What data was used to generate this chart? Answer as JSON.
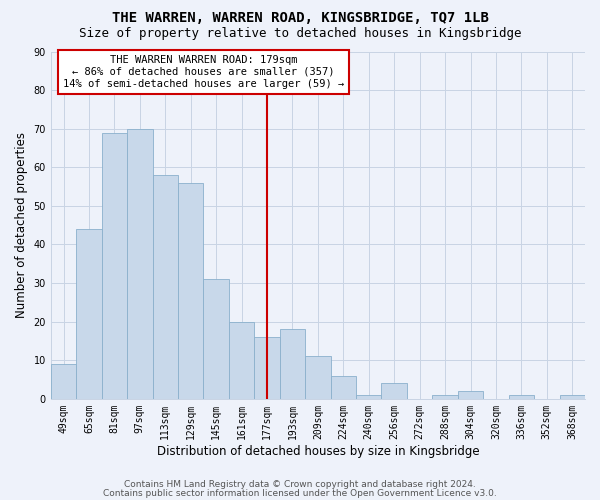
{
  "title": "THE WARREN, WARREN ROAD, KINGSBRIDGE, TQ7 1LB",
  "subtitle": "Size of property relative to detached houses in Kingsbridge",
  "xlabel": "Distribution of detached houses by size in Kingsbridge",
  "ylabel": "Number of detached properties",
  "categories": [
    "49sqm",
    "65sqm",
    "81sqm",
    "97sqm",
    "113sqm",
    "129sqm",
    "145sqm",
    "161sqm",
    "177sqm",
    "193sqm",
    "209sqm",
    "224sqm",
    "240sqm",
    "256sqm",
    "272sqm",
    "288sqm",
    "304sqm",
    "320sqm",
    "336sqm",
    "352sqm",
    "368sqm"
  ],
  "values": [
    9,
    44,
    69,
    70,
    58,
    56,
    31,
    20,
    16,
    18,
    11,
    6,
    1,
    4,
    0,
    1,
    2,
    0,
    1,
    0,
    1
  ],
  "bar_color": "#c8d8ea",
  "bar_edge_color": "#8ab0cc",
  "bar_width": 1.0,
  "marker_index": 8,
  "marker_color": "#cc0000",
  "annotation_title": "THE WARREN WARREN ROAD: 179sqm",
  "annotation_line1": "← 86% of detached houses are smaller (357)",
  "annotation_line2": "14% of semi-detached houses are larger (59) →",
  "annotation_box_color": "#cc0000",
  "annotation_fill": "#ffffff",
  "ylim": [
    0,
    90
  ],
  "yticks": [
    0,
    10,
    20,
    30,
    40,
    50,
    60,
    70,
    80,
    90
  ],
  "grid_color": "#c8d4e4",
  "plot_bg_color": "#eef2fa",
  "fig_bg_color": "#eef2fa",
  "title_fontsize": 10,
  "subtitle_fontsize": 9,
  "axis_label_fontsize": 8.5,
  "tick_fontsize": 7,
  "annotation_fontsize": 7.5,
  "footer_fontsize": 6.5,
  "footer1": "Contains HM Land Registry data © Crown copyright and database right 2024.",
  "footer2": "Contains public sector information licensed under the Open Government Licence v3.0."
}
